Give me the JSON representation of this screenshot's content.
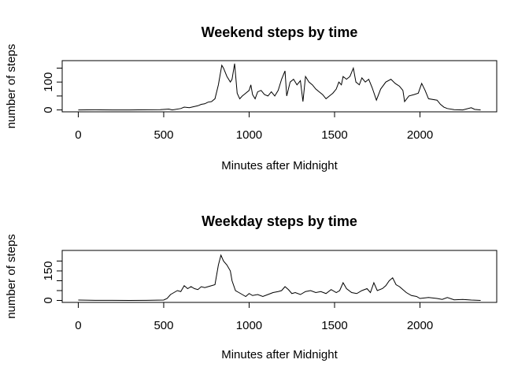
{
  "chart_data": [
    {
      "type": "line",
      "title": "Weekend steps by time",
      "xlabel": "Minutes after Midnight",
      "ylabel": "number of steps",
      "color": "#000000",
      "xlim": [
        -94.2,
        2449.2
      ],
      "ylim": [
        -6.8,
        176.8
      ],
      "xticks": [
        0,
        500,
        1000,
        1500,
        2000
      ],
      "yticks": [
        0,
        100
      ],
      "minor_yticks": [
        50,
        150
      ],
      "x": [
        0,
        100,
        200,
        300,
        400,
        480,
        530,
        550,
        600,
        620,
        650,
        700,
        720,
        740,
        760,
        780,
        800,
        820,
        840,
        850,
        870,
        890,
        900,
        915,
        930,
        945,
        960,
        980,
        1000,
        1010,
        1020,
        1035,
        1050,
        1070,
        1090,
        1110,
        1130,
        1150,
        1170,
        1190,
        1210,
        1220,
        1240,
        1260,
        1280,
        1300,
        1315,
        1330,
        1350,
        1370,
        1390,
        1410,
        1430,
        1450,
        1470,
        1490,
        1510,
        1525,
        1540,
        1550,
        1570,
        1590,
        1610,
        1625,
        1645,
        1660,
        1680,
        1700,
        1720,
        1745,
        1770,
        1800,
        1830,
        1855,
        1880,
        1900,
        1910,
        1935,
        1965,
        1990,
        2010,
        2030,
        2050,
        2100,
        2120,
        2140,
        2160,
        2200,
        2250,
        2300,
        2320,
        2355
      ],
      "values": [
        0,
        0.5,
        0,
        0,
        0.5,
        1,
        3,
        0,
        5,
        10,
        8,
        15,
        20,
        22,
        28,
        30,
        40,
        90,
        160,
        150,
        120,
        100,
        110,
        166,
        60,
        40,
        50,
        60,
        70,
        90,
        55,
        40,
        65,
        70,
        55,
        50,
        65,
        50,
        70,
        110,
        140,
        50,
        100,
        110,
        90,
        105,
        30,
        120,
        100,
        90,
        75,
        65,
        55,
        40,
        50,
        60,
        75,
        100,
        90,
        120,
        110,
        120,
        150,
        100,
        90,
        115,
        100,
        110,
        80,
        35,
        75,
        100,
        110,
        95,
        85,
        70,
        30,
        50,
        55,
        60,
        95,
        70,
        40,
        35,
        20,
        10,
        5,
        1,
        0,
        8,
        2,
        0
      ]
    },
    {
      "type": "line",
      "title": "Weekday steps by time",
      "xlabel": "Minutes after Midnight",
      "ylabel": "number of steps",
      "color": "#000000",
      "xlim": [
        -94.2,
        2449.2
      ],
      "ylim": [
        -10,
        254
      ],
      "xticks": [
        0,
        500,
        1000,
        1500,
        2000
      ],
      "yticks": [
        0,
        150
      ],
      "minor_yticks": [
        50,
        100,
        200
      ],
      "x": [
        0,
        100,
        200,
        300,
        400,
        500,
        520,
        540,
        560,
        580,
        600,
        620,
        640,
        660,
        680,
        700,
        720,
        740,
        760,
        780,
        800,
        820,
        835,
        850,
        870,
        890,
        900,
        920,
        940,
        960,
        980,
        1000,
        1020,
        1050,
        1080,
        1110,
        1140,
        1170,
        1190,
        1210,
        1230,
        1250,
        1270,
        1300,
        1330,
        1360,
        1390,
        1420,
        1450,
        1480,
        1510,
        1530,
        1550,
        1570,
        1600,
        1630,
        1660,
        1690,
        1710,
        1730,
        1750,
        1780,
        1800,
        1820,
        1840,
        1860,
        1880,
        1900,
        1920,
        1950,
        1980,
        2000,
        2050,
        2100,
        2130,
        2160,
        2200,
        2250,
        2300,
        2355
      ],
      "values": [
        2,
        0.5,
        0.5,
        0,
        0.3,
        2,
        10,
        30,
        40,
        50,
        45,
        75,
        60,
        70,
        60,
        55,
        70,
        65,
        70,
        75,
        80,
        180,
        230,
        200,
        180,
        150,
        100,
        50,
        40,
        30,
        20,
        35,
        25,
        30,
        20,
        30,
        40,
        45,
        50,
        70,
        55,
        35,
        40,
        30,
        45,
        50,
        40,
        45,
        35,
        55,
        40,
        50,
        90,
        60,
        40,
        35,
        50,
        60,
        40,
        90,
        50,
        60,
        75,
        100,
        115,
        80,
        70,
        55,
        40,
        25,
        20,
        10,
        15,
        10,
        5,
        15,
        3,
        5,
        2,
        0
      ]
    }
  ]
}
